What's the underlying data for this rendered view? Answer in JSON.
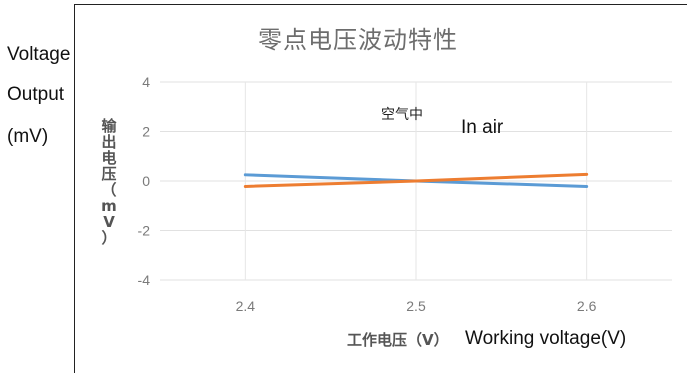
{
  "chart_data": {
    "type": "line",
    "title": "零点电压波动特性",
    "xlabel": "工作电压（V）",
    "ylabel": "输出电压（mV）",
    "x": [
      2.4,
      2.5,
      2.6
    ],
    "x_tick_labels": [
      "2.4",
      "2.5",
      "2.6"
    ],
    "xlim": [
      2.35,
      2.65
    ],
    "ylim": [
      -4,
      4
    ],
    "y_ticks": [
      4,
      2,
      0,
      -2,
      -4
    ],
    "y_tick_labels": [
      "4",
      "2",
      "0",
      "-2",
      "-4"
    ],
    "grid": true,
    "series": [
      {
        "color": "#5b9bd5",
        "values": [
          0.25,
          0.0,
          -0.22
        ]
      },
      {
        "color": "#ed7d31",
        "values": [
          -0.22,
          0.0,
          0.27
        ]
      }
    ],
    "annotation": "空气中"
  },
  "overlay": {
    "y_label_lines": [
      "Voltage",
      "Output",
      "(mV)"
    ],
    "annotation_en": "In air",
    "x_label_en": "Working voltage(V)"
  }
}
